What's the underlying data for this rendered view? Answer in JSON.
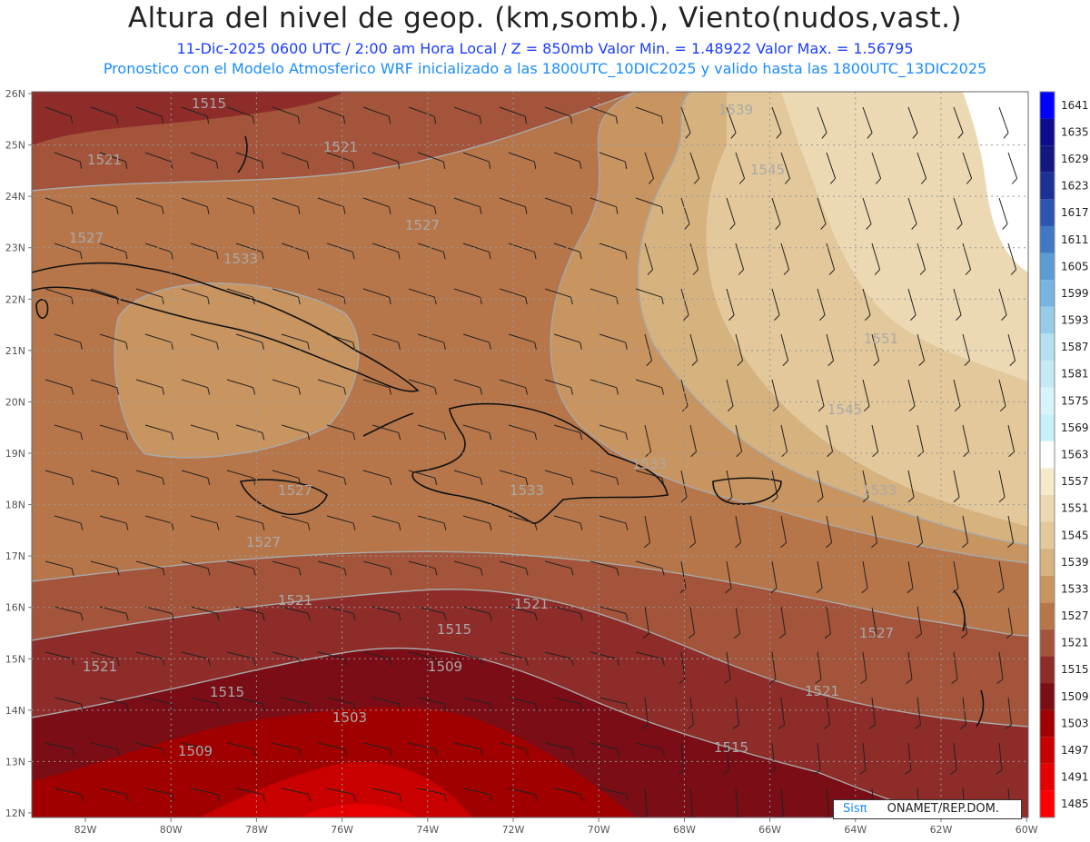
{
  "header": {
    "title": "Altura del nivel de geop. (km,somb.), Viento(nudos,vast.)",
    "subtitle_line1": "11-Dic-2025   0600 UTC / 2:00 am Hora Local / Z = 850mb    Valor Min. = 1.48922  Valor Max. = 1.56795",
    "subtitle_line2": "Pronostico con el Modelo Atmosferico WRF inicializado a las 1800UTC_10DIC2025 y valido hasta las  1800UTC_13DIC2025"
  },
  "axes": {
    "lon_ticks": [
      "82W",
      "80W",
      "78W",
      "76W",
      "74W",
      "72W",
      "70W",
      "68W",
      "66W",
      "64W",
      "62W",
      "60W"
    ],
    "lat_ticks": [
      "26N",
      "25N",
      "24N",
      "23N",
      "22N",
      "21N",
      "20N",
      "19N",
      "18N",
      "17N",
      "16N",
      "15N",
      "14N",
      "13N",
      "12N"
    ]
  },
  "colorbar": {
    "levels": [
      "1485",
      "1491",
      "1497",
      "1503",
      "1509",
      "1515",
      "1521",
      "1527",
      "1533",
      "1539",
      "1545",
      "1551",
      "1557",
      "1563",
      "1569",
      "1575",
      "1581",
      "1587",
      "1593",
      "1599",
      "1605",
      "1611",
      "1617",
      "1623",
      "1629",
      "1635",
      "1641"
    ],
    "colors": [
      "#ff0000",
      "#e60000",
      "#c80000",
      "#a00000",
      "#7a0d16",
      "#8e2c2a",
      "#a3543a",
      "#b7764a",
      "#c89460",
      "#d6b27e",
      "#e2c89a",
      "#ecd9b4",
      "#f5e9cc",
      "#ffffff",
      "#c8f0fa",
      "#d8f4fb",
      "#c6eaf4",
      "#b4e0f0",
      "#96cce8",
      "#78b4e0",
      "#5c9cd4",
      "#4078c4",
      "#2c54b0",
      "#1c3096",
      "#121880",
      "#0c0c8c",
      "#0000ff"
    ]
  },
  "contour_labels": [
    {
      "text": "1515"
    },
    {
      "text": "1521"
    },
    {
      "text": "1521"
    },
    {
      "text": "1527"
    },
    {
      "text": "1539"
    },
    {
      "text": "1545"
    },
    {
      "text": "1527"
    },
    {
      "text": "1533"
    },
    {
      "text": "1551"
    },
    {
      "text": "1545"
    },
    {
      "text": "1533"
    },
    {
      "text": "1527"
    },
    {
      "text": "1527"
    },
    {
      "text": "1521"
    },
    {
      "text": "1521"
    },
    {
      "text": "1515"
    },
    {
      "text": "1509"
    },
    {
      "text": "1521"
    },
    {
      "text": "1515"
    },
    {
      "text": "1503"
    },
    {
      "text": "1509"
    },
    {
      "text": "1521"
    },
    {
      "text": "1527"
    },
    {
      "text": "1515"
    },
    {
      "text": "1533"
    },
    {
      "text": "1533"
    }
  ],
  "credit": {
    "logo": "Sisπ",
    "text": "ONAMET/REP.DOM."
  }
}
